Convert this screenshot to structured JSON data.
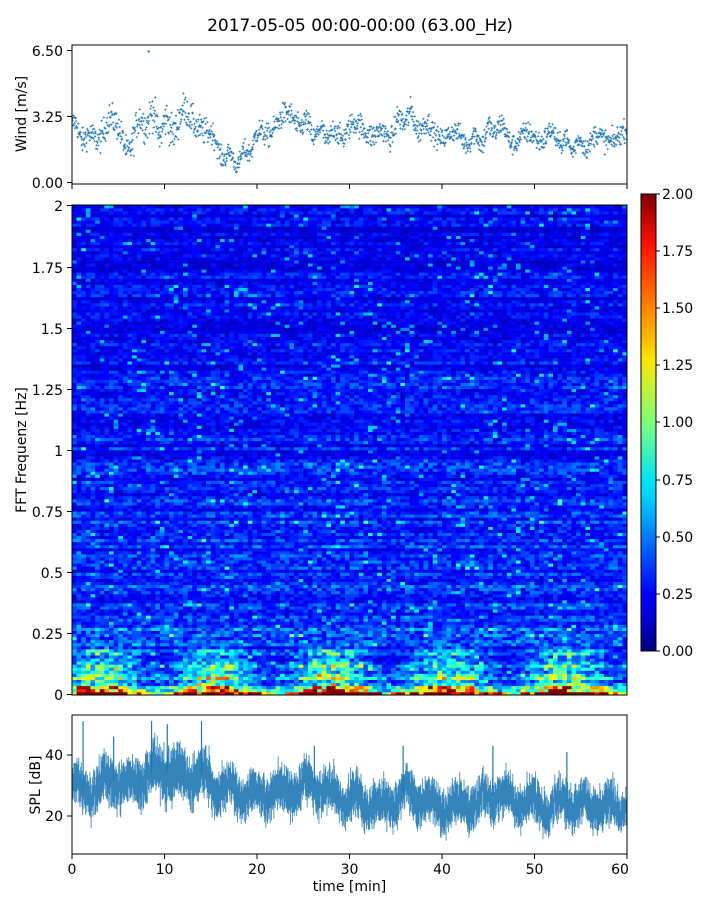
{
  "figure": {
    "title": "2017-05-05 00:00-00:00 (63.00_Hz)"
  },
  "chart_data": [
    {
      "type": "scatter",
      "panel": "wind",
      "ylabel": "Wind [m/s]",
      "xlabel": "",
      "xlim": [
        0,
        60
      ],
      "ylim": [
        0,
        6.5
      ],
      "yticks": [
        "0.00",
        "3.25",
        "6.50"
      ],
      "marker": "+",
      "color": "#1f77b4",
      "grid": false,
      "envelope_x": [
        0,
        2,
        4,
        6,
        8,
        10,
        12,
        14,
        16,
        18,
        20,
        22,
        24,
        26,
        28,
        30,
        32,
        34,
        36,
        38,
        40,
        42,
        44,
        46,
        48,
        50,
        52,
        54,
        56,
        58,
        60
      ],
      "envelope_mean": [
        2.8,
        2.0,
        3.0,
        1.8,
        3.3,
        2.6,
        3.2,
        3.0,
        1.5,
        1.0,
        2.2,
        2.9,
        3.2,
        2.5,
        2.3,
        2.6,
        2.7,
        2.2,
        3.3,
        2.7,
        2.4,
        2.2,
        2.1,
        2.8,
        2.0,
        2.3,
        2.3,
        1.8,
        2.0,
        2.3,
        2.3
      ],
      "envelope_spread": [
        0.8,
        0.9,
        1.0,
        1.0,
        1.2,
        1.3,
        1.1,
        1.0,
        0.7,
        0.6,
        0.8,
        0.8,
        0.9,
        0.8,
        0.8,
        0.8,
        0.9,
        0.7,
        1.0,
        0.8,
        0.7,
        0.7,
        0.8,
        0.8,
        0.7,
        0.8,
        0.7,
        0.7,
        0.7,
        0.8,
        0.7
      ],
      "peak_value": 6.45
    },
    {
      "type": "heatmap",
      "panel": "spectrogram",
      "ylabel": "FFT Frequenz [Hz]",
      "xlabel": "",
      "xlim": [
        0,
        60
      ],
      "ylim": [
        0,
        2
      ],
      "yticks": [
        "0",
        "0.25",
        "0.5",
        "0.75",
        "1",
        "1.25",
        "1.5",
        "1.75",
        "2"
      ],
      "colormap": "jet",
      "clim": [
        0,
        2
      ],
      "colorbar_ticks": [
        "0.00",
        "0.25",
        "0.50",
        "0.75",
        "1.00",
        "1.25",
        "1.50",
        "1.75",
        "2.00"
      ],
      "typical_level_by_frequency": {
        "frequency_hz": [
          0.0,
          0.02,
          0.05,
          0.1,
          0.2,
          0.3,
          0.5,
          1.0,
          1.5,
          2.0
        ],
        "level": [
          1.9,
          1.4,
          0.75,
          0.55,
          0.42,
          0.38,
          0.33,
          0.28,
          0.25,
          0.22
        ]
      }
    },
    {
      "type": "area",
      "panel": "spl",
      "ylabel": "SPL [dB]",
      "xlabel": "time [min]",
      "xlim": [
        0,
        60
      ],
      "ylim": [
        8,
        53
      ],
      "yticks": [
        "20",
        "40"
      ],
      "xticks": [
        "0",
        "10",
        "20",
        "30",
        "40",
        "50",
        "60"
      ],
      "color": "#1f77b4",
      "grid": false,
      "x": [
        0,
        2,
        4,
        6,
        8,
        10,
        12,
        14,
        16,
        18,
        20,
        22,
        24,
        26,
        28,
        30,
        32,
        34,
        36,
        38,
        40,
        42,
        44,
        46,
        48,
        50,
        52,
        54,
        56,
        58,
        60
      ],
      "mean": [
        30,
        28,
        32,
        30,
        34,
        35,
        33,
        34,
        29,
        28,
        27,
        28,
        29,
        31,
        27,
        26,
        24,
        24,
        28,
        26,
        23,
        24,
        25,
        27,
        25,
        24,
        24,
        25,
        24,
        23,
        24
      ],
      "band_half_width": [
        6,
        6,
        7,
        6,
        7,
        7,
        7,
        7,
        6,
        6,
        6,
        6,
        6,
        6,
        6,
        6,
        6,
        6,
        6,
        6,
        6,
        6,
        6,
        6,
        6,
        6,
        6,
        6,
        6,
        6,
        6
      ],
      "spikes": [
        {
          "x": 1.2,
          "value": 51
        },
        {
          "x": 4.5,
          "value": 46
        },
        {
          "x": 8.6,
          "value": 51
        },
        {
          "x": 10.3,
          "value": 50
        },
        {
          "x": 14.0,
          "value": 51
        },
        {
          "x": 26.2,
          "value": 43
        },
        {
          "x": 35.8,
          "value": 43
        },
        {
          "x": 45.5,
          "value": 43
        },
        {
          "x": 53.5,
          "value": 41
        }
      ]
    }
  ]
}
